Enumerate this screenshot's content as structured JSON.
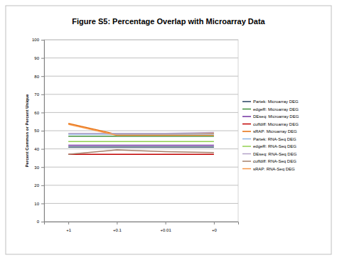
{
  "chart_data": {
    "type": "line",
    "title": "Figure S5: Percentage Overlap with Microarray Data",
    "y_label": "Percent Common or Percent Unique",
    "categories": [
      "+1",
      "+0.1",
      "+0.01",
      "+0"
    ],
    "series": [
      {
        "name": "Partek: Microarray DEG",
        "color": "#254061",
        "values": [
          41,
          41,
          41,
          41
        ]
      },
      {
        "name": "edgeR: Microarray DEG",
        "color": "#3f8f3a",
        "values": [
          47,
          47,
          47,
          47
        ]
      },
      {
        "name": "DEseq: Microarray DEG",
        "color": "#7030a0",
        "values": [
          42,
          42,
          42,
          42
        ]
      },
      {
        "name": "cuffdiff: Microarray DEG",
        "color": "#c00000",
        "values": [
          37,
          37,
          37,
          37
        ]
      },
      {
        "name": "sRAP: Microarray DEG",
        "color": "#e46c0a",
        "values": [
          54,
          48,
          48,
          48.5
        ]
      },
      {
        "name": "Partek: RNA-Seq DEG",
        "color": "#8eb4e3",
        "values": [
          48,
          48,
          48,
          48
        ]
      },
      {
        "name": "edgeR: RNA-Seq DEG",
        "color": "#92d050",
        "values": [
          44,
          44,
          44,
          44
        ]
      },
      {
        "name": "DEseq: RNA-Seq DEG",
        "color": "#b3a2c7",
        "values": [
          48.5,
          48.5,
          48.5,
          49
        ]
      },
      {
        "name": "cuffdiff: RNA-Seq DEG",
        "color": "#a5806b",
        "values": [
          37,
          39.5,
          38.5,
          38
        ]
      },
      {
        "name": "sRAP: RNA-Seq DEG",
        "color": "#f79646",
        "values": [
          53.5,
          47.5,
          47.5,
          47.5
        ]
      }
    ],
    "ylim": [
      0,
      100
    ],
    "yticks": [
      0,
      10,
      20,
      30,
      40,
      50,
      60,
      70,
      80,
      90,
      100
    ],
    "grid": true,
    "legend": "right"
  }
}
